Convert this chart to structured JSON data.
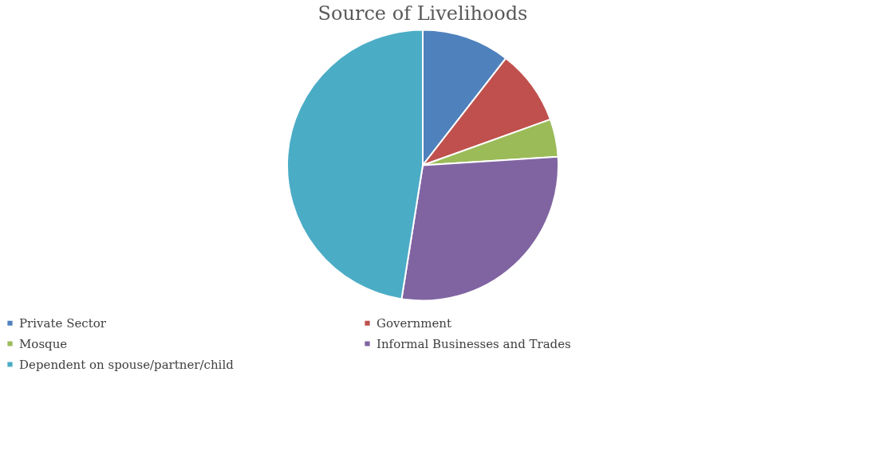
{
  "chart_data": {
    "type": "pie",
    "title": "Source of Livelihoods",
    "categories": [
      "Private Sector",
      "Government",
      "Mosque",
      "Informal Businesses and Trades",
      "Dependent on spouse/partner/child"
    ],
    "values": [
      10.5,
      9,
      4.5,
      28.5,
      47.5
    ],
    "colors": [
      "#4f81bd",
      "#c0504d",
      "#9bbb59",
      "#8064a2",
      "#4bacc6"
    ],
    "legend": "bottom"
  }
}
